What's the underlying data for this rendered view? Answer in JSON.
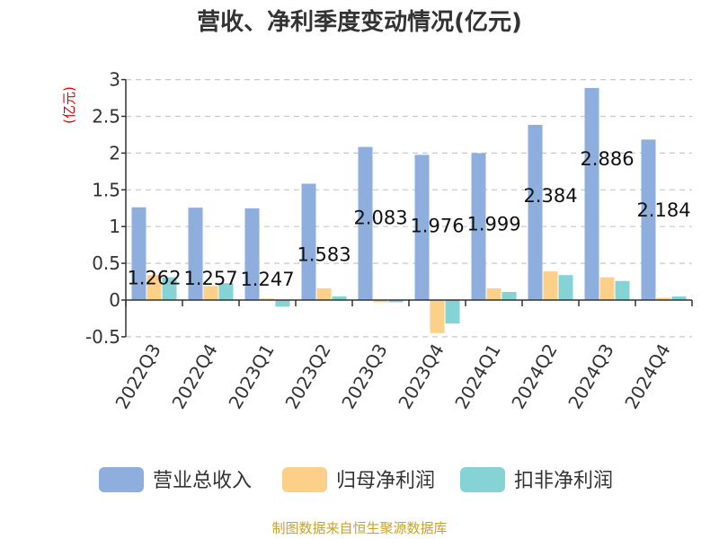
{
  "chart_data": {
    "type": "bar",
    "title": "营收、净利季度变动情况(亿元)",
    "ylabel": "(亿元)",
    "categories": [
      "2022Q3",
      "2022Q4",
      "2023Q1",
      "2023Q2",
      "2023Q3",
      "2023Q4",
      "2024Q1",
      "2024Q2",
      "2024Q3",
      "2024Q4"
    ],
    "series": [
      {
        "name": "营业总收入",
        "color": "#8eaedd",
        "values": [
          1.262,
          1.257,
          1.247,
          1.583,
          2.083,
          1.976,
          1.999,
          2.384,
          2.886,
          2.184
        ]
      },
      {
        "name": "归母净利润",
        "color": "#fdd08a",
        "values": [
          0.34,
          0.19,
          0.02,
          0.16,
          -0.03,
          -0.45,
          0.16,
          0.39,
          0.31,
          0.03
        ]
      },
      {
        "name": "扣非净利润",
        "color": "#86d3d6",
        "values": [
          0.31,
          0.23,
          -0.09,
          0.05,
          -0.03,
          -0.32,
          0.11,
          0.34,
          0.26,
          0.05
        ]
      }
    ],
    "data_labels": [
      "1.262",
      "1.257",
      "1.247",
      "1.583",
      "2.083",
      "1.976",
      "1.999",
      "2.384",
      "2.886",
      "2.184"
    ],
    "yticks": [
      "-0.5",
      "0",
      "0.5",
      "1",
      "1.5",
      "2",
      "2.5",
      "3"
    ],
    "ylim": [
      -0.5,
      3
    ],
    "grid": true,
    "legend_position": "bottom",
    "source": "制图数据来自恒生聚源数据库"
  }
}
